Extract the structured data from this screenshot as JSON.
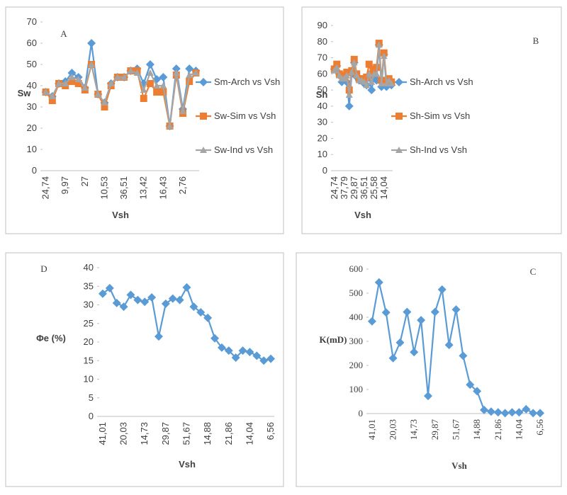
{
  "chart_data": [
    {
      "type": "line",
      "label": "A",
      "ylabel": "Sw",
      "xlabel": "Vsh",
      "categories": [
        "24,74",
        null,
        null,
        "9,97",
        null,
        null,
        "27",
        null,
        null,
        "10,53",
        null,
        null,
        "36,51",
        null,
        null,
        "13,42",
        null,
        null,
        "16,43",
        null,
        null,
        "2,76",
        null,
        null
      ],
      "ylim": [
        0,
        70
      ],
      "yticks": [
        0,
        10,
        20,
        30,
        40,
        50,
        60,
        70
      ],
      "series": [
        {
          "name": "Sm-Arch vs Vsh",
          "color": "#5b9bd5",
          "marker": "diamond",
          "values": [
            37,
            35,
            41,
            42,
            46,
            44,
            39,
            60,
            36,
            32,
            41,
            44,
            44,
            47,
            48,
            41,
            50,
            43,
            44,
            21,
            48,
            29,
            48,
            47
          ]
        },
        {
          "name": "Sw-Sim vs Vsh",
          "color": "#ed7d31",
          "marker": "square",
          "values": [
            37,
            33,
            41,
            40,
            42,
            41,
            38,
            50,
            36,
            30,
            40,
            44,
            44,
            47,
            47,
            34,
            41,
            37,
            37,
            21,
            45,
            27,
            42,
            46
          ]
        },
        {
          "name": "Sw-Ind vs Vsh",
          "color": "#a5a5a5",
          "marker": "triangle",
          "values": [
            37,
            35,
            41,
            41,
            44,
            43,
            39,
            50,
            36,
            32,
            41,
            44,
            44,
            47,
            46,
            38,
            46,
            40,
            40,
            21,
            46,
            28,
            45,
            46
          ]
        }
      ]
    },
    {
      "type": "line",
      "label": "B",
      "ylabel": "Sh",
      "xlabel": "Vsh",
      "categories": [
        "24,74",
        null,
        null,
        null,
        "37,79",
        null,
        null,
        null,
        "29,87",
        null,
        null,
        null,
        "36,51",
        null,
        null,
        null,
        "25,58",
        null,
        null,
        null,
        "14,04",
        null,
        null,
        null
      ],
      "ylim": [
        0,
        90
      ],
      "yticks": [
        0,
        10,
        20,
        30,
        40,
        50,
        60,
        70,
        80,
        90
      ],
      "series": [
        {
          "name": "Sh-Arch vs Vsh",
          "color": "#5b9bd5",
          "marker": "diamond",
          "values": [
            63,
            65,
            60,
            55,
            57,
            55,
            40,
            60,
            67,
            58,
            56,
            56,
            54,
            53,
            58,
            50,
            58,
            56,
            78,
            52,
            72,
            52,
            55,
            53
          ]
        },
        {
          "name": "Sh-Sim vs Vsh",
          "color": "#ed7d31",
          "marker": "square",
          "values": [
            63,
            66,
            60,
            59,
            58,
            61,
            50,
            62,
            69,
            60,
            57,
            57,
            56,
            58,
            66,
            60,
            63,
            64,
            79,
            56,
            73,
            56,
            57,
            55
          ]
        },
        {
          "name": "Sh-Ind vs Vsh",
          "color": "#a5a5a5",
          "marker": "triangle",
          "values": [
            62,
            64,
            59,
            57,
            57,
            59,
            47,
            61,
            67,
            59,
            56,
            56,
            55,
            53,
            60,
            55,
            60,
            60,
            78,
            54,
            71,
            54,
            56,
            54
          ]
        }
      ]
    },
    {
      "type": "line",
      "label": "D",
      "ylabel": "Φe (%)",
      "xlabel": "Vsh",
      "categories": [
        "41,01",
        null,
        null,
        "20,03",
        null,
        null,
        "14,73",
        null,
        null,
        "29,87",
        null,
        null,
        "51,67",
        null,
        null,
        "14,88",
        null,
        null,
        "21,86",
        null,
        null,
        "14,04",
        null,
        null,
        "6,56"
      ],
      "ylim": [
        0,
        40
      ],
      "yticks": [
        0,
        5,
        10,
        15,
        20,
        25,
        30,
        35,
        40
      ],
      "series": [
        {
          "name": "Φe",
          "color": "#5b9bd5",
          "marker": "diamond",
          "values": [
            33,
            34.5,
            30.5,
            29.5,
            32.7,
            31.3,
            30.8,
            32,
            21.5,
            30.3,
            31.7,
            31.3,
            34.7,
            29.5,
            28,
            26.5,
            21,
            18.5,
            17.7,
            15.8,
            17.7,
            17.3,
            16.3,
            15,
            15.5
          ]
        }
      ]
    },
    {
      "type": "line",
      "label": "C",
      "ylabel": "K(mD)",
      "xlabel": "Vsh",
      "categories": [
        "41,01",
        null,
        null,
        "20,03",
        null,
        null,
        "14,73",
        null,
        null,
        "29,87",
        null,
        null,
        "51,67",
        null,
        null,
        "14,88",
        null,
        null,
        "21,86",
        null,
        null,
        "14,04",
        null,
        null,
        "6,56"
      ],
      "ylim": [
        0,
        600
      ],
      "yticks": [
        0,
        100,
        200,
        300,
        400,
        500,
        600
      ],
      "series": [
        {
          "name": "K",
          "color": "#5b9bd5",
          "marker": "diamond",
          "values": [
            383,
            545,
            420,
            230,
            295,
            422,
            255,
            388,
            73,
            422,
            515,
            285,
            432,
            240,
            120,
            93,
            15,
            8,
            5,
            2,
            5,
            5,
            18,
            2,
            2
          ]
        }
      ]
    }
  ]
}
